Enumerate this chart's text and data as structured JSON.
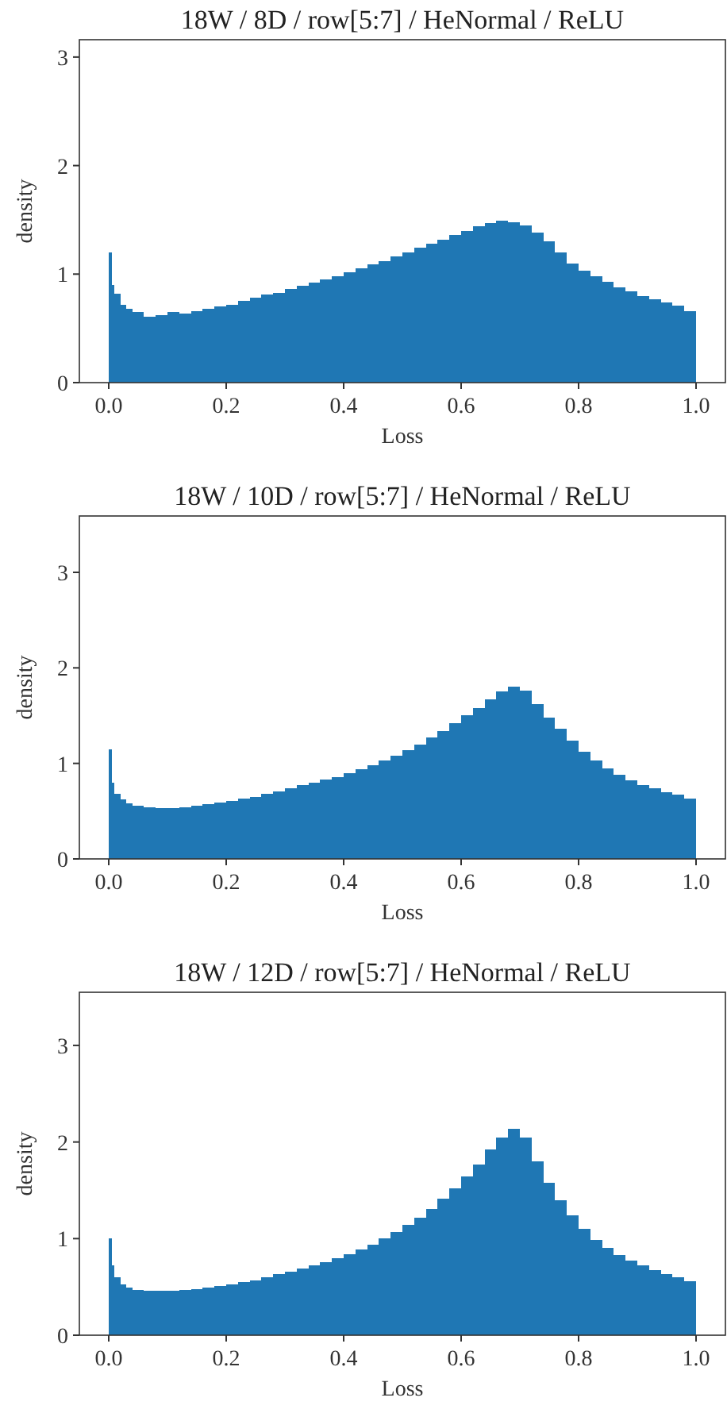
{
  "chart_data": [
    {
      "type": "histogram",
      "title": "18W / 8D / row[5:7] / HeNormal / ReLU",
      "xlabel": "Loss",
      "ylabel": "density",
      "color": "#1f77b4",
      "bins": [
        0,
        0.005,
        0.01,
        0.02,
        0.03,
        0.04,
        0.06,
        0.08,
        0.1,
        0.12,
        0.14,
        0.16,
        0.18,
        0.2,
        0.22,
        0.24,
        0.26,
        0.28,
        0.3,
        0.32,
        0.34,
        0.36,
        0.38,
        0.4,
        0.42,
        0.44,
        0.46,
        0.48,
        0.5,
        0.52,
        0.54,
        0.56,
        0.58,
        0.6,
        0.62,
        0.64,
        0.66,
        0.68,
        0.7,
        0.72,
        0.74,
        0.76,
        0.78,
        0.8,
        0.82,
        0.84,
        0.86,
        0.88,
        0.9,
        0.92,
        0.94,
        0.96,
        0.98,
        1.0
      ],
      "values": [
        1.2,
        0.9,
        0.82,
        0.72,
        0.68,
        0.65,
        0.61,
        0.62,
        0.65,
        0.64,
        0.66,
        0.68,
        0.7,
        0.72,
        0.75,
        0.78,
        0.81,
        0.83,
        0.86,
        0.89,
        0.92,
        0.95,
        0.98,
        1.02,
        1.05,
        1.09,
        1.12,
        1.16,
        1.2,
        1.24,
        1.28,
        1.32,
        1.36,
        1.4,
        1.44,
        1.47,
        1.49,
        1.48,
        1.45,
        1.38,
        1.3,
        1.2,
        1.1,
        1.03,
        0.98,
        0.93,
        0.88,
        0.84,
        0.8,
        0.77,
        0.74,
        0.71,
        0.66
      ],
      "xlim": [
        -0.05,
        1.05
      ],
      "xticks": [
        {
          "value": 0,
          "label": "0.0"
        },
        {
          "value": 0.2,
          "label": "0.2"
        },
        {
          "value": 0.4,
          "label": "0.4"
        },
        {
          "value": 0.6,
          "label": "0.6"
        },
        {
          "value": 0.8,
          "label": "0.8"
        },
        {
          "value": 1,
          "label": "1.0"
        }
      ],
      "ylim": [
        0,
        3.16
      ],
      "yticks": [
        0,
        1,
        2,
        3
      ]
    },
    {
      "type": "histogram",
      "title": "18W / 10D / row[5:7] / HeNormal / ReLU",
      "xlabel": "Loss",
      "ylabel": "density",
      "color": "#1f77b4",
      "bins": [
        0,
        0.005,
        0.01,
        0.02,
        0.03,
        0.04,
        0.06,
        0.08,
        0.1,
        0.12,
        0.14,
        0.16,
        0.18,
        0.2,
        0.22,
        0.24,
        0.26,
        0.28,
        0.3,
        0.32,
        0.34,
        0.36,
        0.38,
        0.4,
        0.42,
        0.44,
        0.46,
        0.48,
        0.5,
        0.52,
        0.54,
        0.56,
        0.58,
        0.6,
        0.62,
        0.64,
        0.66,
        0.68,
        0.7,
        0.72,
        0.74,
        0.76,
        0.78,
        0.8,
        0.82,
        0.84,
        0.86,
        0.88,
        0.9,
        0.92,
        0.94,
        0.96,
        0.98,
        1.0
      ],
      "values": [
        1.15,
        0.8,
        0.68,
        0.62,
        0.58,
        0.56,
        0.54,
        0.53,
        0.53,
        0.54,
        0.56,
        0.57,
        0.59,
        0.61,
        0.63,
        0.65,
        0.68,
        0.71,
        0.74,
        0.77,
        0.8,
        0.83,
        0.86,
        0.9,
        0.94,
        0.98,
        1.03,
        1.08,
        1.14,
        1.2,
        1.27,
        1.34,
        1.42,
        1.5,
        1.58,
        1.67,
        1.75,
        1.8,
        1.76,
        1.62,
        1.48,
        1.36,
        1.24,
        1.12,
        1.03,
        0.95,
        0.88,
        0.82,
        0.77,
        0.74,
        0.7,
        0.67,
        0.63
      ],
      "xlim": [
        -0.05,
        1.05
      ],
      "xticks": [
        {
          "value": 0,
          "label": "0.0"
        },
        {
          "value": 0.2,
          "label": "0.2"
        },
        {
          "value": 0.4,
          "label": "0.4"
        },
        {
          "value": 0.6,
          "label": "0.6"
        },
        {
          "value": 0.8,
          "label": "0.8"
        },
        {
          "value": 1,
          "label": "1.0"
        }
      ],
      "ylim": [
        0,
        3.59
      ],
      "yticks": [
        0,
        1,
        2,
        3
      ]
    },
    {
      "type": "histogram",
      "title": "18W / 12D / row[5:7] / HeNormal / ReLU",
      "xlabel": "Loss",
      "ylabel": "density",
      "color": "#1f77b4",
      "bins": [
        0,
        0.005,
        0.01,
        0.02,
        0.03,
        0.04,
        0.06,
        0.08,
        0.1,
        0.12,
        0.14,
        0.16,
        0.18,
        0.2,
        0.22,
        0.24,
        0.26,
        0.28,
        0.3,
        0.32,
        0.34,
        0.36,
        0.38,
        0.4,
        0.42,
        0.44,
        0.46,
        0.48,
        0.5,
        0.52,
        0.54,
        0.56,
        0.58,
        0.6,
        0.62,
        0.64,
        0.66,
        0.68,
        0.7,
        0.72,
        0.74,
        0.76,
        0.78,
        0.8,
        0.82,
        0.84,
        0.86,
        0.88,
        0.9,
        0.92,
        0.94,
        0.96,
        0.98,
        1.0
      ],
      "values": [
        1.0,
        0.72,
        0.6,
        0.53,
        0.49,
        0.47,
        0.46,
        0.46,
        0.46,
        0.47,
        0.48,
        0.49,
        0.51,
        0.53,
        0.55,
        0.57,
        0.6,
        0.63,
        0.66,
        0.69,
        0.72,
        0.76,
        0.8,
        0.84,
        0.89,
        0.94,
        1.0,
        1.07,
        1.14,
        1.22,
        1.31,
        1.41,
        1.52,
        1.64,
        1.77,
        1.92,
        2.05,
        2.14,
        2.05,
        1.8,
        1.58,
        1.4,
        1.24,
        1.1,
        0.99,
        0.9,
        0.83,
        0.77,
        0.72,
        0.67,
        0.63,
        0.6,
        0.56
      ],
      "xlim": [
        -0.05,
        1.05
      ],
      "xticks": [
        {
          "value": 0,
          "label": "0.0"
        },
        {
          "value": 0.2,
          "label": "0.2"
        },
        {
          "value": 0.4,
          "label": "0.4"
        },
        {
          "value": 0.6,
          "label": "0.6"
        },
        {
          "value": 0.8,
          "label": "0.8"
        },
        {
          "value": 1,
          "label": "1.0"
        }
      ],
      "ylim": [
        0,
        3.55
      ],
      "yticks": [
        0,
        1,
        2,
        3
      ]
    }
  ]
}
